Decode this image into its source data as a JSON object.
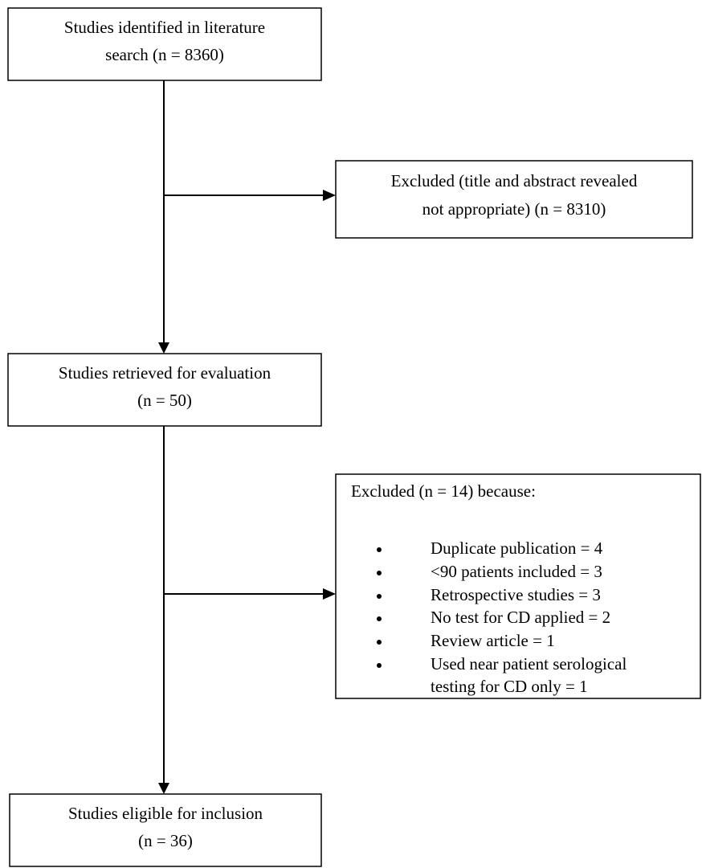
{
  "nodes": [
    {
      "lines": [
        "Studies identified in literature",
        "search (n = 8360)"
      ]
    },
    {
      "lines": [
        "Excluded (title and abstract revealed",
        "not appropriate) (n = 8310)"
      ]
    },
    {
      "lines": [
        "Studies retrieved for evaluation",
        "(n = 50)"
      ]
    },
    {
      "heading": "Excluded (n = 14) because:",
      "items": [
        {
          "lines": [
            "Duplicate publication = 4"
          ]
        },
        {
          "lines": [
            "<90 patients included = 3"
          ]
        },
        {
          "lines": [
            "Retrospective studies = 3"
          ]
        },
        {
          "lines": [
            "No test for CD applied = 2"
          ]
        },
        {
          "lines": [
            "Review article = 1"
          ]
        },
        {
          "lines": [
            "Used near patient serological",
            "testing for CD only = 1"
          ]
        }
      ]
    },
    {
      "lines": [
        "Studies eligible for inclusion",
        "(n = 36)"
      ]
    }
  ]
}
